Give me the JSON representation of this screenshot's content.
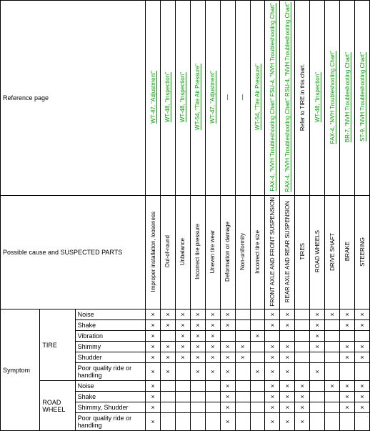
{
  "header_labels": {
    "reference_page": "Reference page",
    "possible_cause": "Possible cause and SUSPECTED PARTS",
    "symptom": "Symptom"
  },
  "references": [
    "WT-47, \"Adjustment\"",
    "WT-48, \"Inspection\"",
    "WT-48, \"Inspection\"",
    "WT-54, \"Tire Air Pressure\"",
    "WT-47, \"Adjustment\"",
    "—",
    "—",
    "WT-54, \"Tire Air Pressure\"",
    "FAX-4, \"NVH Troubleshooting Chart\"  FSU-4, \"NVH Troubleshooting Chart\"",
    "RAX-4, \"NVH Troubleshooting Chart\"  RSU-4, \"NVH Troubleshooting Chart\"",
    "Refer to TIRE in this chart.",
    "WT-48, \"Inspection\"",
    "FAX-4, \"NVH Troubleshooting Chart\"",
    "BR-7, \"NVH Troubleshooting Chart\"",
    "ST-9, \"NVH Troubleshooting Chart\""
  ],
  "ref_is_link": [
    true,
    true,
    true,
    true,
    true,
    false,
    false,
    true,
    true,
    true,
    false,
    true,
    true,
    true,
    true
  ],
  "causes": [
    "Improper installation, looseness",
    "Out-of-round",
    "Unbalance",
    "Incorrect tire pressure",
    "Uneven tire wear",
    "Deformation or damage",
    "Non-uniformity",
    "Incorrect tire size",
    "FRONT AXLE AND FRONT SUSPENSION",
    "REAR AXLE AND REAR SUSPENSION",
    "TIRES",
    "ROAD WHEELS",
    "DRIVE SHAFT",
    "BRAKE",
    "STEERING"
  ],
  "groups": [
    {
      "name": "TIRE",
      "rows": [
        "Noise",
        "Shake",
        "Vibration",
        "Shimmy",
        "Shudder",
        "Poor quality ride or handling"
      ]
    },
    {
      "name": "ROAD WHEEL",
      "rows": [
        "Noise",
        "Shake",
        "Shimmy, Shudder",
        "Poor quality ride or handling"
      ]
    }
  ],
  "marks": {
    "TIRE": {
      "Noise": [
        1,
        1,
        1,
        1,
        1,
        1,
        0,
        0,
        1,
        1,
        0,
        1,
        1,
        1,
        1
      ],
      "Shake": [
        1,
        1,
        1,
        1,
        1,
        1,
        0,
        0,
        1,
        1,
        0,
        1,
        0,
        1,
        1
      ],
      "Vibration": [
        1,
        0,
        1,
        1,
        1,
        0,
        0,
        1,
        0,
        0,
        0,
        1,
        0,
        0,
        0
      ],
      "Shimmy": [
        1,
        1,
        1,
        1,
        1,
        1,
        1,
        0,
        1,
        1,
        0,
        1,
        0,
        1,
        1
      ],
      "Shudder": [
        1,
        1,
        1,
        1,
        1,
        1,
        1,
        0,
        1,
        1,
        0,
        0,
        0,
        1,
        1
      ],
      "Poor quality ride or handling": [
        1,
        1,
        0,
        1,
        1,
        1,
        0,
        1,
        1,
        1,
        0,
        1,
        0,
        0,
        0
      ]
    },
    "ROAD WHEEL": {
      "Noise": [
        1,
        0,
        0,
        0,
        0,
        1,
        0,
        0,
        1,
        1,
        1,
        0,
        1,
        1,
        1
      ],
      "Shake": [
        1,
        0,
        0,
        0,
        0,
        1,
        0,
        0,
        1,
        1,
        1,
        0,
        0,
        1,
        1
      ],
      "Shimmy, Shudder": [
        1,
        0,
        0,
        0,
        0,
        1,
        0,
        0,
        1,
        1,
        1,
        0,
        0,
        1,
        1
      ],
      "Poor quality ride or handling": [
        1,
        0,
        0,
        0,
        0,
        1,
        0,
        0,
        1,
        1,
        1,
        0,
        0,
        0,
        0
      ]
    }
  },
  "colors": {
    "link": "#00a000",
    "border": "#000000",
    "bg": "#ffffff"
  }
}
